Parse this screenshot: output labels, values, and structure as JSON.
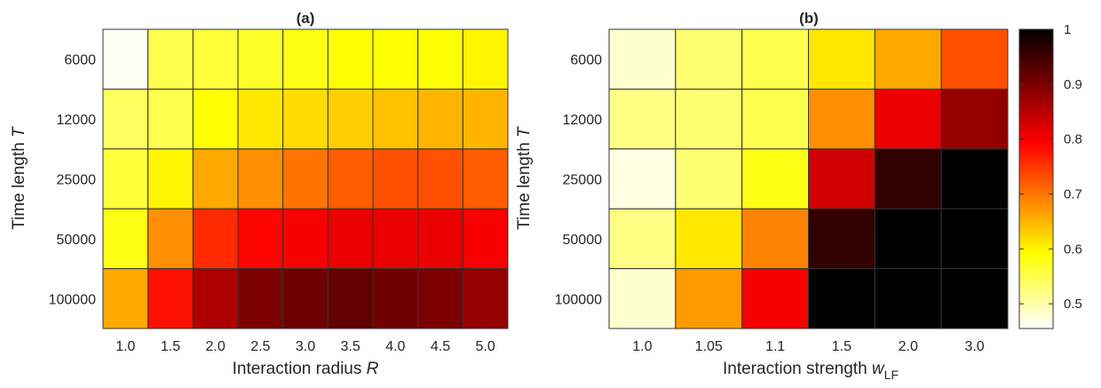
{
  "chart_data": [
    {
      "type": "heatmap",
      "title": "(a)",
      "x_categories": [
        "1.0",
        "1.5",
        "2.0",
        "2.5",
        "3.0",
        "3.5",
        "4.0",
        "4.5",
        "5.0"
      ],
      "y_categories": [
        "6000",
        "12000",
        "25000",
        "50000",
        "100000"
      ],
      "xlabel": "Interaction radius",
      "xlabel_symbol": "R",
      "ylabel": "Time length",
      "ylabel_symbol": "T",
      "values": [
        [
          0.46,
          0.55,
          0.56,
          0.57,
          0.58,
          0.59,
          0.59,
          0.59,
          0.6
        ],
        [
          0.54,
          0.55,
          0.59,
          0.61,
          0.62,
          0.63,
          0.64,
          0.65,
          0.65
        ],
        [
          0.56,
          0.6,
          0.66,
          0.68,
          0.7,
          0.72,
          0.73,
          0.73,
          0.72
        ],
        [
          0.58,
          0.68,
          0.76,
          0.79,
          0.8,
          0.81,
          0.81,
          0.81,
          0.8
        ],
        [
          0.66,
          0.78,
          0.86,
          0.9,
          0.91,
          0.92,
          0.91,
          0.9,
          0.88
        ]
      ]
    },
    {
      "type": "heatmap",
      "title": "(b)",
      "x_categories": [
        "1.0",
        "1.05",
        "1.1",
        "1.5",
        "2.0",
        "3.0"
      ],
      "y_categories": [
        "6000",
        "12000",
        "25000",
        "50000",
        "100000"
      ],
      "xlabel": "Interaction strength",
      "xlabel_symbol": "w",
      "xlabel_subscript": "LF",
      "ylabel": "Time length",
      "ylabel_symbol": "T",
      "values": [
        [
          0.48,
          0.53,
          0.55,
          0.61,
          0.66,
          0.73
        ],
        [
          0.52,
          0.53,
          0.55,
          0.68,
          0.81,
          0.88
        ],
        [
          0.47,
          0.53,
          0.58,
          0.83,
          0.96,
          1.0
        ],
        [
          0.52,
          0.61,
          0.69,
          0.96,
          1.0,
          1.0
        ],
        [
          0.48,
          0.67,
          0.8,
          1.0,
          1.0,
          1.0
        ]
      ]
    }
  ],
  "colorbar": {
    "min": 0.455,
    "max": 1.0,
    "ticks": [
      "0.5",
      "0.6",
      "0.7",
      "0.8",
      "0.9",
      "1"
    ],
    "colormap": "hot (reversed)"
  }
}
